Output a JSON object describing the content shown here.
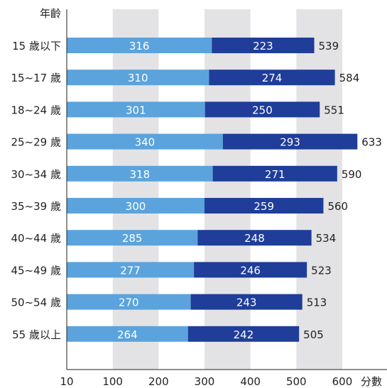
{
  "chart_data": {
    "type": "bar",
    "orientation": "horizontal",
    "stacked": true,
    "title": "",
    "ylabel": "年齡",
    "xlabel": "分數",
    "categories": [
      "15 歲以下",
      "15~17 歲",
      "18~24 歲",
      "25~29 歲",
      "30~34 歲",
      "35~39 歲",
      "40~44 歲",
      "45~49 歲",
      "50~54 歲",
      "55 歲以上"
    ],
    "series": [
      {
        "values": [
          316,
          310,
          301,
          340,
          318,
          300,
          285,
          277,
          270,
          264
        ],
        "color": "#5ba3dc"
      },
      {
        "values": [
          223,
          274,
          250,
          293,
          271,
          259,
          248,
          246,
          243,
          242
        ],
        "color": "#1f3d99"
      }
    ],
    "totals": [
      539,
      584,
      551,
      633,
      590,
      560,
      534,
      523,
      513,
      505
    ],
    "xticks": [
      10,
      100,
      200,
      300,
      400,
      500,
      600
    ],
    "xlim": [
      0,
      650
    ],
    "band_color": "#e3e3e6",
    "grid": false,
    "legend": "none"
  }
}
